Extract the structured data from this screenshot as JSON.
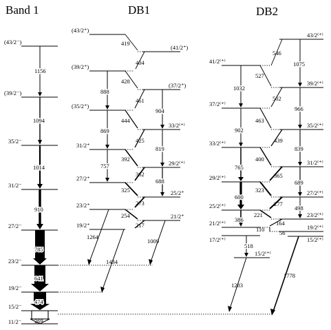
{
  "headers": {
    "band1": "Band 1",
    "db1": "DB1",
    "db2": "DB2"
  },
  "band1": {
    "spins": [
      "(43/2⁻)",
      "(39/2⁻)",
      "35/2⁻",
      "31/2⁻",
      "27/2⁻",
      "23/2⁻",
      "19/2⁻",
      "15/2⁻",
      "11/2⁻"
    ],
    "energies": [
      "1156",
      "1094",
      "1014",
      "910",
      "785",
      "641",
      "474",
      "269"
    ]
  },
  "db1": {
    "left_spins": [
      "(43/2⁺)",
      "(39/2⁺)",
      "(35/2⁺)",
      "31/2⁺",
      "27/2⁺",
      "23/2⁺",
      "19/2⁺"
    ],
    "right_spins": [
      "(41/2⁺)",
      "(37/2⁺)",
      "33/2⁽⁺⁾",
      "29/2⁽⁺⁾",
      "25/2⁺",
      "21/2⁺"
    ],
    "m1_energies": [
      "419",
      "404",
      "428",
      "461",
      "444",
      "425",
      "392",
      "362",
      "325",
      "273",
      "254",
      "217"
    ],
    "e2_left_energies": [
      "888",
      "869",
      "757"
    ],
    "e2_right_energies": [
      "904",
      "819",
      "688"
    ],
    "out_energies": [
      "1264",
      "1434",
      "1009"
    ]
  },
  "db2": {
    "left_spins": [
      "41/2⁽⁺⁾",
      "37/2⁽⁺⁾",
      "33/2⁽⁺⁾",
      "29/2⁽⁺⁾",
      "25/2⁽⁺⁾",
      "21/2⁽⁺⁾",
      "17/2⁽⁺⁾"
    ],
    "right_spins": [
      "43/2⁽⁺⁾",
      "39/2⁽⁺⁾",
      "35/2⁽⁺⁾",
      "31/2⁽⁺⁾",
      "27/2⁽⁺⁾",
      "23/2⁽⁺⁾",
      "19/2⁽⁺⁾",
      "15/2⁽⁺⁾"
    ],
    "bottom_spin": "15/2⁽⁺⁾",
    "m1_energies": [
      "546",
      "527",
      "502",
      "463",
      "439",
      "400",
      "365",
      "323",
      "277",
      "221",
      "164",
      "110",
      "56"
    ],
    "e2_left_energies": [
      "1032",
      "902",
      "765",
      "600",
      "386",
      "518"
    ],
    "e2_right_energies": [
      "1075",
      "966",
      "839",
      "689",
      "498"
    ],
    "out_energies": [
      "1283",
      "1778"
    ]
  }
}
